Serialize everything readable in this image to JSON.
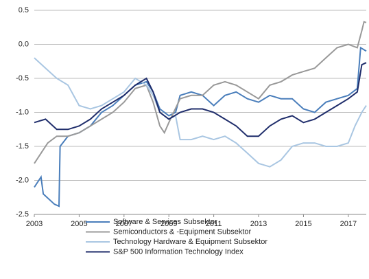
{
  "chart_data": {
    "type": "line",
    "xlim": [
      2003,
      2017.8
    ],
    "xticks": [
      2003,
      2005,
      2007,
      2009,
      2011,
      2013,
      2015,
      2017
    ],
    "ylim": [
      -2.5,
      0.5
    ],
    "yticks": [
      {
        "value": 0.5,
        "label": "0.5"
      },
      {
        "value": 0,
        "label": "0.0"
      },
      {
        "value": -0.5,
        "label": "-0.5"
      },
      {
        "value": -1,
        "label": "-1.0"
      },
      {
        "value": -1.5,
        "label": "-1.5"
      },
      {
        "value": -2,
        "label": "-2.0"
      },
      {
        "value": -2.5,
        "label": "-2.5"
      }
    ],
    "grid": true,
    "legend": "bottom",
    "series": [
      {
        "name": "Software & Services Subsektor",
        "color": "#4a7ebb",
        "x": [
          2003,
          2003.3,
          2003.4,
          2003.9,
          2004.1,
          2004.15,
          2004.5,
          2005,
          2005.5,
          2006,
          2006.5,
          2007,
          2007.5,
          2008,
          2008.3,
          2008.6,
          2009,
          2009.3,
          2009.5,
          2010,
          2010.5,
          2011,
          2011.5,
          2012,
          2012.5,
          2013,
          2013.5,
          2014,
          2014.5,
          2015,
          2015.5,
          2016,
          2016.5,
          2017,
          2017.4,
          2017.55,
          2017.8
        ],
        "values": [
          -2.1,
          -1.95,
          -2.2,
          -2.35,
          -2.38,
          -1.5,
          -1.35,
          -1.3,
          -1.2,
          -1.0,
          -0.9,
          -0.75,
          -0.6,
          -0.55,
          -0.7,
          -0.95,
          -1.05,
          -1.0,
          -0.75,
          -0.7,
          -0.75,
          -0.9,
          -0.75,
          -0.7,
          -0.8,
          -0.85,
          -0.75,
          -0.8,
          -0.8,
          -0.95,
          -1.0,
          -0.85,
          -0.8,
          -0.75,
          -0.65,
          -0.05,
          -0.1
        ]
      },
      {
        "name": "Semiconductors & -Equipment Subsektor",
        "color": "#999999",
        "x": [
          2003,
          2003.3,
          2003.6,
          2004,
          2004.5,
          2005,
          2005.5,
          2006,
          2006.5,
          2007,
          2007.5,
          2008,
          2008.3,
          2008.6,
          2008.8,
          2009,
          2009.5,
          2010,
          2010.5,
          2011,
          2011.5,
          2012,
          2012.5,
          2013,
          2013.5,
          2014,
          2014.5,
          2015,
          2015.5,
          2016,
          2016.5,
          2017,
          2017.4,
          2017.6,
          2017.7,
          2017.8
        ],
        "values": [
          -1.75,
          -1.6,
          -1.45,
          -1.35,
          -1.35,
          -1.3,
          -1.2,
          -1.1,
          -1.0,
          -0.85,
          -0.65,
          -0.6,
          -0.85,
          -1.2,
          -1.3,
          -1.15,
          -0.8,
          -0.75,
          -0.75,
          -0.6,
          -0.55,
          -0.6,
          -0.7,
          -0.8,
          -0.6,
          -0.55,
          -0.45,
          -0.4,
          -0.35,
          -0.2,
          -0.05,
          0.0,
          -0.05,
          0.2,
          0.33,
          0.32
        ]
      },
      {
        "name": "Technology Hardware & Equipment Subsektor",
        "color": "#a9c6e2",
        "x": [
          2003,
          2003.5,
          2004,
          2004.5,
          2005,
          2005.5,
          2006,
          2006.5,
          2007,
          2007.5,
          2008,
          2008.3,
          2008.6,
          2009,
          2009.3,
          2009.5,
          2010,
          2010.5,
          2011,
          2011.5,
          2012,
          2012.5,
          2013,
          2013.5,
          2014,
          2014.5,
          2015,
          2015.5,
          2016,
          2016.5,
          2017,
          2017.3,
          2017.6,
          2017.8
        ],
        "values": [
          -0.2,
          -0.35,
          -0.5,
          -0.6,
          -0.9,
          -0.95,
          -0.9,
          -0.8,
          -0.7,
          -0.5,
          -0.6,
          -0.75,
          -1.0,
          -1.1,
          -1.05,
          -1.4,
          -1.4,
          -1.35,
          -1.4,
          -1.35,
          -1.45,
          -1.6,
          -1.75,
          -1.8,
          -1.7,
          -1.5,
          -1.45,
          -1.45,
          -1.5,
          -1.5,
          -1.45,
          -1.2,
          -1.0,
          -0.9
        ]
      },
      {
        "name": "S&P 500 Information Technology Index",
        "color": "#1f2d6b",
        "x": [
          2003,
          2003.5,
          2004,
          2004.5,
          2005,
          2005.5,
          2006,
          2006.5,
          2007,
          2007.5,
          2008,
          2008.3,
          2008.6,
          2009,
          2009.5,
          2010,
          2010.5,
          2011,
          2011.5,
          2012,
          2012.5,
          2013,
          2013.5,
          2014,
          2014.5,
          2015,
          2015.5,
          2016,
          2016.5,
          2017,
          2017.4,
          2017.6,
          2017.8
        ],
        "values": [
          -1.15,
          -1.1,
          -1.25,
          -1.25,
          -1.2,
          -1.1,
          -0.95,
          -0.85,
          -0.75,
          -0.6,
          -0.5,
          -0.7,
          -1.0,
          -1.1,
          -1.0,
          -0.95,
          -0.95,
          -1.0,
          -1.1,
          -1.2,
          -1.35,
          -1.35,
          -1.2,
          -1.1,
          -1.05,
          -1.15,
          -1.1,
          -1.0,
          -0.9,
          -0.8,
          -0.7,
          -0.3,
          -0.27
        ]
      }
    ]
  }
}
